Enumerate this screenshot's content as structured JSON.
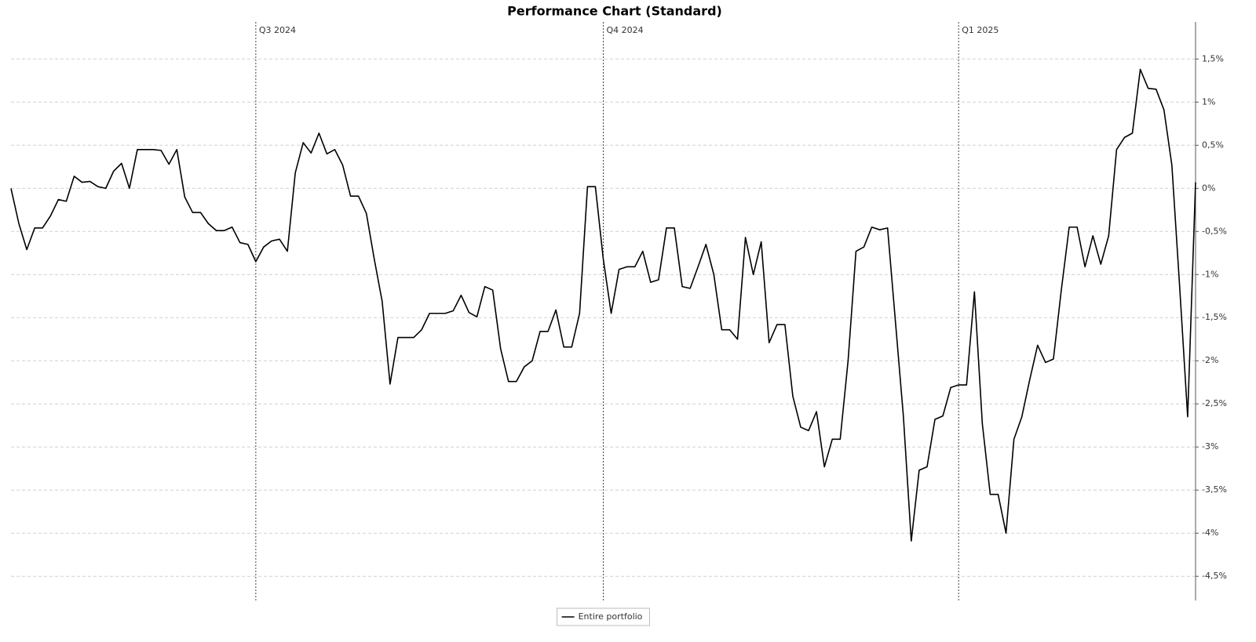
{
  "chart_data": {
    "type": "line",
    "title": "Performance Chart (Standard)",
    "categories": [
      null,
      null,
      null,
      null,
      null,
      null,
      null,
      null,
      null,
      null,
      null,
      null,
      null,
      null,
      null,
      null,
      null,
      null,
      null,
      null,
      null,
      null,
      null,
      null,
      null,
      null,
      null,
      null,
      null,
      null,
      null,
      "Q3 2024",
      null,
      null,
      null,
      null,
      null,
      null,
      null,
      null,
      null,
      null,
      null,
      null,
      null,
      null,
      null,
      null,
      null,
      null,
      null,
      null,
      null,
      null,
      null,
      null,
      null,
      null,
      null,
      null,
      null,
      null,
      null,
      null,
      null,
      null,
      null,
      null,
      null,
      null,
      null,
      null,
      null,
      null,
      null,
      "Q4 2024",
      null,
      null,
      null,
      null,
      null,
      null,
      null,
      null,
      null,
      null,
      null,
      null,
      null,
      null,
      null,
      null,
      null,
      null,
      null,
      null,
      null,
      null,
      null,
      null,
      null,
      null,
      null,
      null,
      null,
      null,
      null,
      null,
      null,
      null,
      null,
      null,
      null,
      null,
      null,
      null,
      null,
      null,
      null,
      null,
      "Q1 2025",
      null,
      null,
      null,
      null,
      null,
      null,
      null,
      null,
      null,
      null,
      null,
      null,
      null,
      null,
      null,
      null,
      null,
      null,
      null,
      null,
      null,
      null,
      null,
      null,
      null,
      null,
      null,
      null,
      null,
      null
    ],
    "series": [
      {
        "name": "Entire portfolio",
        "color": "#000000",
        "values": [
          0,
          -0.41,
          -0.71,
          -0.46,
          -0.46,
          -0.32,
          -0.13,
          -0.15,
          0.14,
          0.07,
          0.08,
          0.02,
          0,
          0.2,
          0.29,
          0,
          0.45,
          0.45,
          0.45,
          0.44,
          0.28,
          0.45,
          -0.1,
          -0.28,
          -0.28,
          -0.41,
          -0.49,
          -0.49,
          -0.45,
          -0.63,
          -0.65,
          -0.85,
          -0.68,
          -0.61,
          -0.59,
          -0.73,
          0.18,
          0.53,
          0.41,
          0.64,
          0.4,
          0.45,
          0.27,
          -0.09,
          -0.09,
          -0.29,
          -0.82,
          -1.31,
          -2.27,
          -1.73,
          -1.73,
          -1.73,
          -1.64,
          -1.45,
          -1.45,
          -1.45,
          -1.42,
          -1.24,
          -1.44,
          -1.49,
          -1.14,
          -1.18,
          -1.86,
          -2.24,
          -2.24,
          -2.07,
          -2,
          -1.66,
          -1.66,
          -1.41,
          -1.84,
          -1.84,
          -1.45,
          0.02,
          0.02,
          -0.82,
          -1.45,
          -0.94,
          -0.91,
          -0.91,
          -0.73,
          -1.09,
          -1.06,
          -0.46,
          -0.46,
          -1.14,
          -1.16,
          -0.91,
          -0.65,
          -1,
          -1.64,
          -1.64,
          -1.75,
          -0.57,
          -1,
          -0.62,
          -1.79,
          -1.58,
          -1.58,
          -2.41,
          -2.77,
          -2.81,
          -2.59,
          -3.23,
          -2.91,
          -2.91,
          -2,
          -0.73,
          -0.68,
          -0.45,
          -0.48,
          -0.46,
          -1.55,
          -2.64,
          -4.09,
          -3.27,
          -3.23,
          -2.68,
          -2.64,
          -2.31,
          -2.28,
          -2.28,
          -1.2,
          -2.73,
          -3.55,
          -3.55,
          -4,
          -2.91,
          -2.65,
          -2.22,
          -1.82,
          -2.02,
          -1.98,
          -1.18,
          -0.45,
          -0.45,
          -0.91,
          -0.55,
          -0.88,
          -0.55,
          0.45,
          0.59,
          0.64,
          1.38,
          1.16,
          1.15,
          0.91,
          0.27,
          -1.16,
          -2.65,
          0.07
        ]
      }
    ],
    "ylim": [
      -4.78,
      1.93
    ],
    "yticks": [
      {
        "value": 1.5,
        "label": "1,5%"
      },
      {
        "value": 1,
        "label": "1%"
      },
      {
        "value": 0.5,
        "label": "0,5%"
      },
      {
        "value": 0,
        "label": "0%"
      },
      {
        "value": -0.5,
        "label": "-0,5%"
      },
      {
        "value": -1,
        "label": "-1%"
      },
      {
        "value": -1.5,
        "label": "-1,5%"
      },
      {
        "value": -2,
        "label": "-2%"
      },
      {
        "value": -2.5,
        "label": "-2,5%"
      },
      {
        "value": -3,
        "label": "-3%"
      },
      {
        "value": -3.5,
        "label": "-3,5%"
      },
      {
        "value": -4,
        "label": "-4%"
      },
      {
        "value": -4.5,
        "label": "-4,5%"
      }
    ],
    "yaxis_side": "right",
    "grid": true,
    "legend": "bottom"
  }
}
